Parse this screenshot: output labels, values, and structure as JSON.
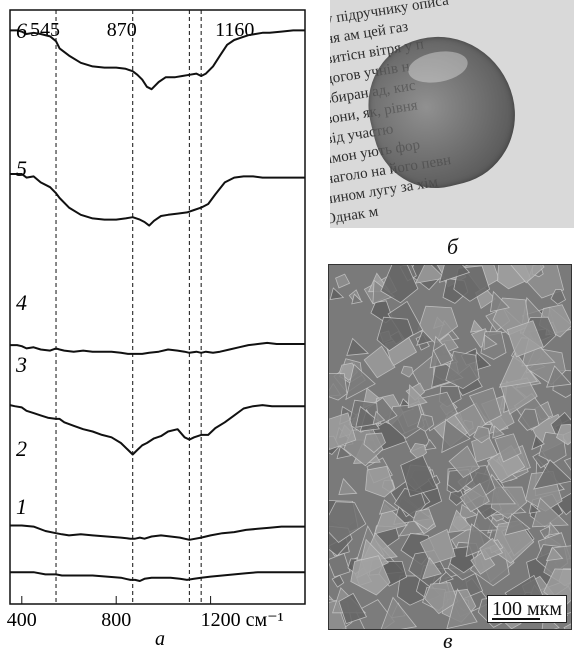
{
  "chart_data": {
    "type": "line",
    "xlabel": "",
    "x_unit": "см⁻¹",
    "xlim": [
      350,
      1600
    ],
    "x_ticks": [
      400,
      800,
      1200
    ],
    "x_tick_labels": [
      "400",
      "800",
      "1200 см⁻¹"
    ],
    "reference_lines": [
      {
        "x": 545,
        "label": "545"
      },
      {
        "x": 870,
        "label": "870"
      },
      {
        "x": 1110,
        "label": ""
      },
      {
        "x": 1160,
        "label": "1160"
      }
    ],
    "series": [
      {
        "name": "6",
        "x": [
          350,
          380,
          400,
          420,
          450,
          480,
          520,
          545,
          560,
          600,
          650,
          700,
          750,
          800,
          840,
          870,
          890,
          910,
          930,
          950,
          980,
          1010,
          1050,
          1080,
          1110,
          1140,
          1160,
          1180,
          1210,
          1240,
          1270,
          1300,
          1330,
          1360,
          1390,
          1420,
          1450,
          1500,
          1550,
          1600
        ],
        "y": [
          58,
          58,
          57,
          55,
          56,
          55,
          53,
          49,
          43,
          37,
          31,
          28,
          27,
          27,
          26,
          24,
          21,
          17,
          11,
          9,
          15,
          19,
          19,
          20,
          21,
          22,
          20,
          22,
          28,
          37,
          46,
          50,
          52,
          54,
          55,
          56,
          56,
          57,
          58,
          58
        ]
      },
      {
        "name": "5",
        "x": [
          350,
          380,
          400,
          420,
          450,
          480,
          520,
          545,
          560,
          600,
          650,
          700,
          750,
          800,
          840,
          870,
          900,
          920,
          940,
          960,
          990,
          1020,
          1060,
          1100,
          1130,
          1160,
          1190,
          1220,
          1260,
          1300,
          1340,
          1380,
          1420,
          1460,
          1500,
          1550,
          1600
        ],
        "y": [
          40,
          40,
          40,
          37,
          38,
          33,
          29,
          24,
          20,
          12,
          6,
          3,
          2,
          2,
          3,
          4,
          2,
          0,
          -3,
          1,
          5,
          6,
          7,
          8,
          10,
          12,
          15,
          23,
          33,
          37,
          38,
          38,
          37,
          37,
          37,
          37,
          37
        ]
      },
      {
        "name": "4",
        "x": [
          350,
          380,
          400,
          420,
          450,
          480,
          520,
          545,
          560,
          580,
          620,
          660,
          700,
          740,
          780,
          820,
          850,
          880,
          910,
          940,
          980,
          1020,
          1060,
          1090,
          1110,
          1140,
          1160,
          1180,
          1210,
          1240,
          1280,
          1320,
          1360,
          1400,
          1440,
          1480,
          1520,
          1560,
          1600
        ],
        "y": [
          9,
          9,
          8,
          6,
          7,
          5,
          4,
          6,
          5,
          4,
          3,
          4,
          3,
          3,
          3,
          2,
          1,
          1,
          1,
          2,
          3,
          5,
          4,
          3,
          2,
          3,
          2,
          3,
          2,
          3,
          5,
          7,
          9,
          10,
          11,
          10,
          10,
          10,
          10
        ]
      },
      {
        "name": "3",
        "x": [
          350,
          370,
          400,
          420,
          450,
          480,
          510,
          545,
          560,
          580,
          620,
          660,
          700,
          740,
          780,
          820,
          850,
          870,
          890,
          910,
          930,
          960,
          990,
          1020,
          1060,
          1090,
          1110,
          1130,
          1160,
          1190,
          1220,
          1260,
          1300,
          1340,
          1380,
          1420,
          1460,
          1500,
          1550,
          1600
        ],
        "y": [
          13,
          12,
          11,
          8,
          6,
          4,
          2,
          1,
          1,
          -2,
          -5,
          -8,
          -10,
          -13,
          -15,
          -20,
          -26,
          -30,
          -26,
          -22,
          -20,
          -16,
          -14,
          -10,
          -8,
          -15,
          -17,
          -15,
          -13,
          -13,
          -7,
          -2,
          4,
          10,
          12,
          13,
          12,
          12,
          12,
          12
        ]
      },
      {
        "name": "2",
        "x": [
          350,
          400,
          450,
          500,
          545,
          570,
          600,
          650,
          700,
          760,
          820,
          860,
          880,
          900,
          920,
          950,
          990,
          1030,
          1070,
          1110,
          1160,
          1200,
          1250,
          1300,
          1350,
          1400,
          1450,
          1500,
          1550,
          1600
        ],
        "y": [
          -5,
          -5,
          -6,
          -10,
          -12,
          -13,
          -14,
          -13,
          -14,
          -15,
          -16,
          -17,
          -17,
          -16,
          -17,
          -15,
          -14,
          -15,
          -16,
          -18,
          -16,
          -14,
          -12,
          -11,
          -9,
          -8,
          -7,
          -6,
          -6,
          -6
        ]
      },
      {
        "name": "1",
        "x": [
          350,
          400,
          450,
          500,
          545,
          570,
          600,
          650,
          700,
          760,
          820,
          860,
          880,
          900,
          920,
          950,
          990,
          1030,
          1070,
          1100,
          1130,
          1160,
          1200,
          1250,
          1300,
          1350,
          1400,
          1450,
          1500,
          1550,
          1600
        ],
        "y": [
          -22,
          -22,
          -22,
          -24,
          -24,
          -25,
          -25,
          -25,
          -25,
          -26,
          -27,
          -29,
          -29,
          -30,
          -28,
          -27,
          -27,
          -27,
          -28,
          -29,
          -28,
          -27,
          -26,
          -25,
          -24,
          -23,
          -22,
          -22,
          -22,
          -22,
          -22
        ]
      }
    ]
  },
  "labels": {
    "panel_a": "а",
    "panel_b": "б",
    "panel_c": "в",
    "scale_bar": "100 мкм"
  },
  "photo_text": [
    "у підручнику описа",
    "ня ам         цей газ",
    "витісн     вітря у п",
    "догов        учнів н",
    "збиран    ад, кис",
    "вони, як,      рівня",
    "від     участю",
    "амон    ують фор",
    "наголо    на його певн",
    "чином  лугу  за  хім",
    "Однак м"
  ]
}
